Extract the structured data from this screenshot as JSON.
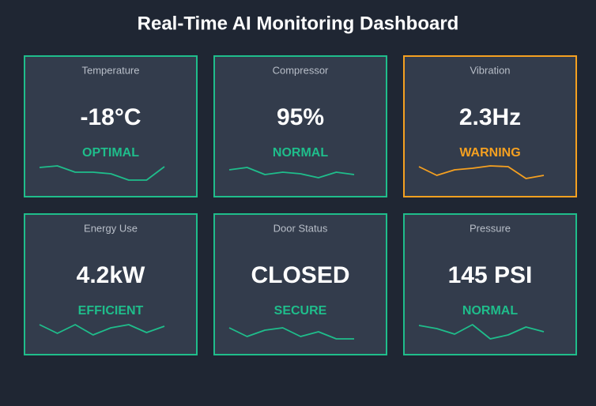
{
  "header": {
    "title": "Real-Time AI Monitoring Dashboard"
  },
  "cards": [
    {
      "label": "Temperature",
      "value": "-18°C",
      "status": "OPTIMAL",
      "color": "#1fbd8b",
      "sparkline": [
        20,
        22,
        14,
        14,
        12,
        4,
        4,
        21
      ]
    },
    {
      "label": "Compressor",
      "value": "95%",
      "status": "NORMAL",
      "color": "#1fbd8b",
      "sparkline": [
        17,
        20,
        11,
        14,
        12,
        7,
        14,
        11
      ]
    },
    {
      "label": "Vibration",
      "value": "2.3Hz",
      "status": "WARNING",
      "color": "#f5a020",
      "sparkline": [
        21,
        10,
        17,
        19,
        22,
        21,
        6,
        10
      ]
    },
    {
      "label": "Energy Use",
      "value": "4.2kW",
      "status": "EFFICIENT",
      "color": "#1fbd8b",
      "sparkline": [
        21,
        10,
        21,
        8,
        17,
        21,
        11,
        19
      ]
    },
    {
      "label": "Door Status",
      "value": "CLOSED",
      "status": "SECURE",
      "color": "#1fbd8b",
      "sparkline": [
        17,
        6,
        14,
        17,
        6,
        12,
        3,
        3
      ]
    },
    {
      "label": "Pressure",
      "value": "145 PSI",
      "status": "NORMAL",
      "color": "#1fbd8b",
      "sparkline": [
        20,
        16,
        9,
        21,
        3,
        8,
        18,
        12
      ]
    }
  ]
}
